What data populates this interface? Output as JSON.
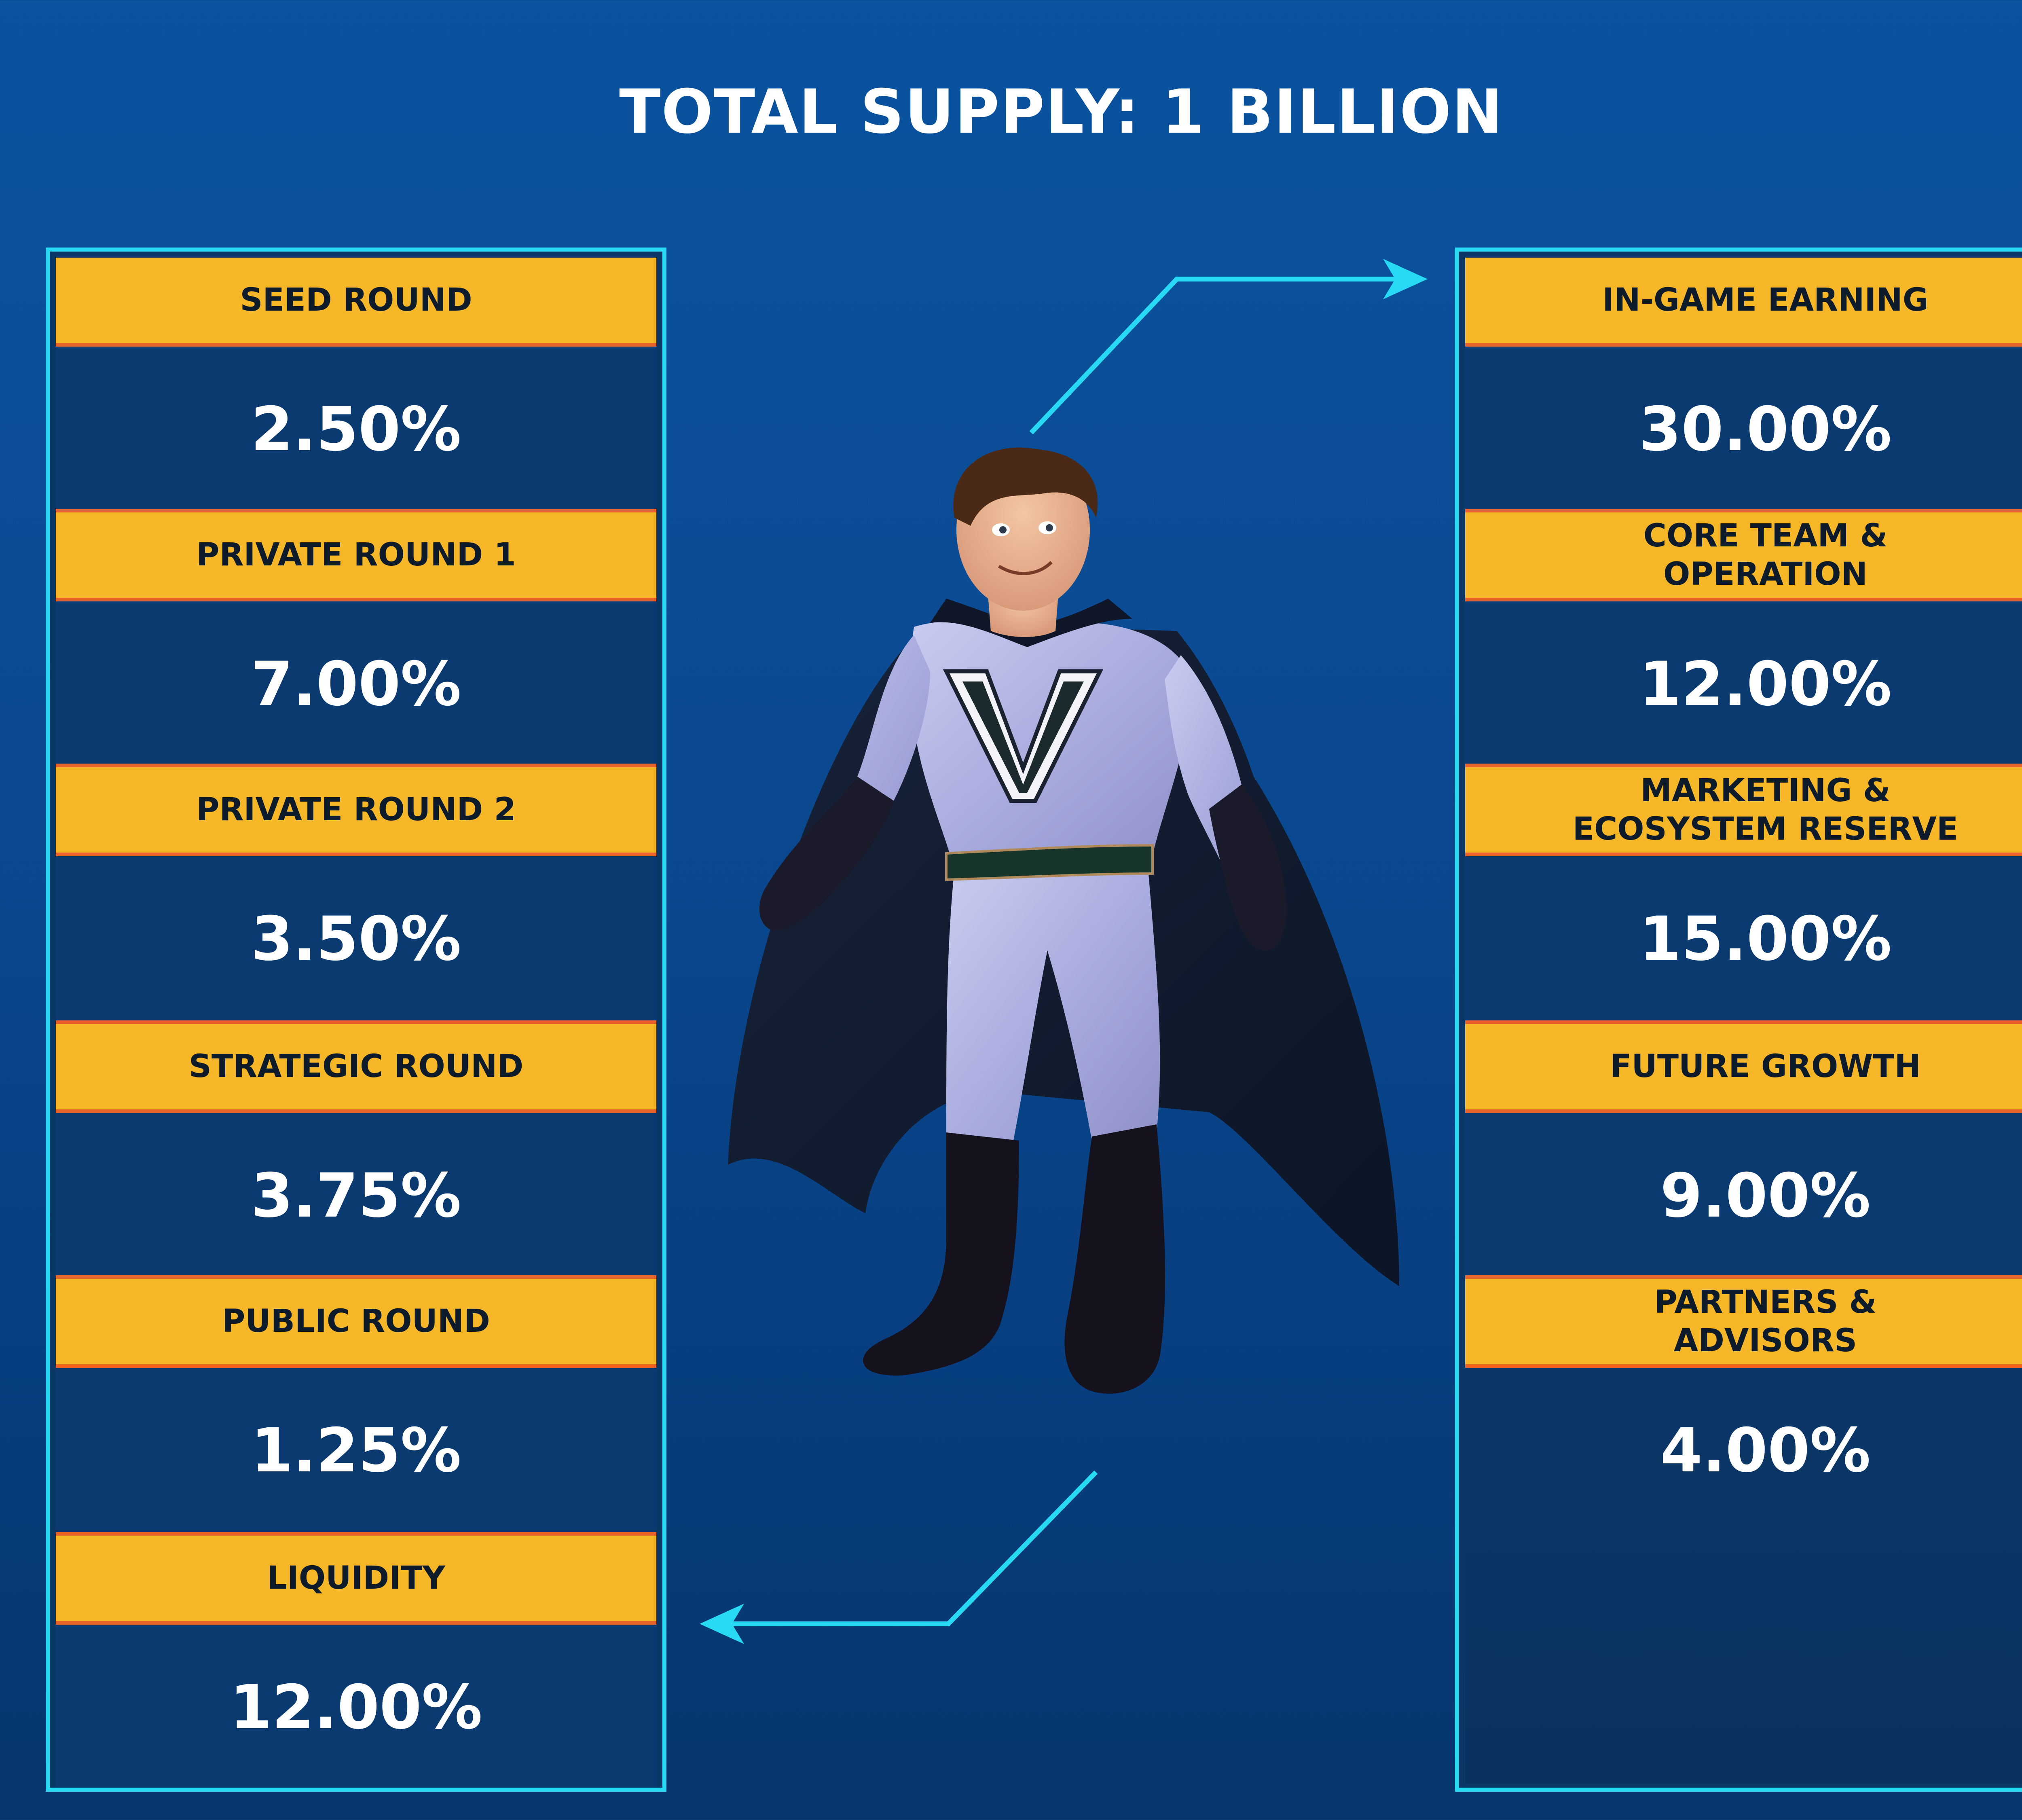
{
  "title": "TOTAL SUPPLY: 1 BILLION",
  "colors": {
    "background": "#0a539f",
    "panel_border": "#28d9f3",
    "header_fill": "#f5b728",
    "header_underline": "#e7632b",
    "value_fill": "#0b3a71"
  },
  "left_panel": {
    "items": [
      {
        "label": "SEED ROUND",
        "value": "2.50%"
      },
      {
        "label": "PRIVATE ROUND 1",
        "value": "7.00%"
      },
      {
        "label": "PRIVATE ROUND 2",
        "value": "3.50%"
      },
      {
        "label": "STRATEGIC ROUND",
        "value": "3.75%"
      },
      {
        "label": "PUBLIC ROUND",
        "value": "1.25%"
      },
      {
        "label": "LIQUIDITY",
        "value": "12.00%"
      }
    ]
  },
  "right_panel": {
    "items": [
      {
        "label": "IN-GAME EARNING",
        "value": "30.00%"
      },
      {
        "label": "CORE TEAM & OPERATION",
        "value": "12.00%"
      },
      {
        "label": "MARKETING & ECOSYSTEM RESERVE",
        "value": "15.00%"
      },
      {
        "label": "FUTURE GROWTH",
        "value": "9.00%"
      },
      {
        "label": "PARTNERS & ADVISORS",
        "value": "4.00%"
      }
    ]
  },
  "illustration": "superhero-mascot"
}
